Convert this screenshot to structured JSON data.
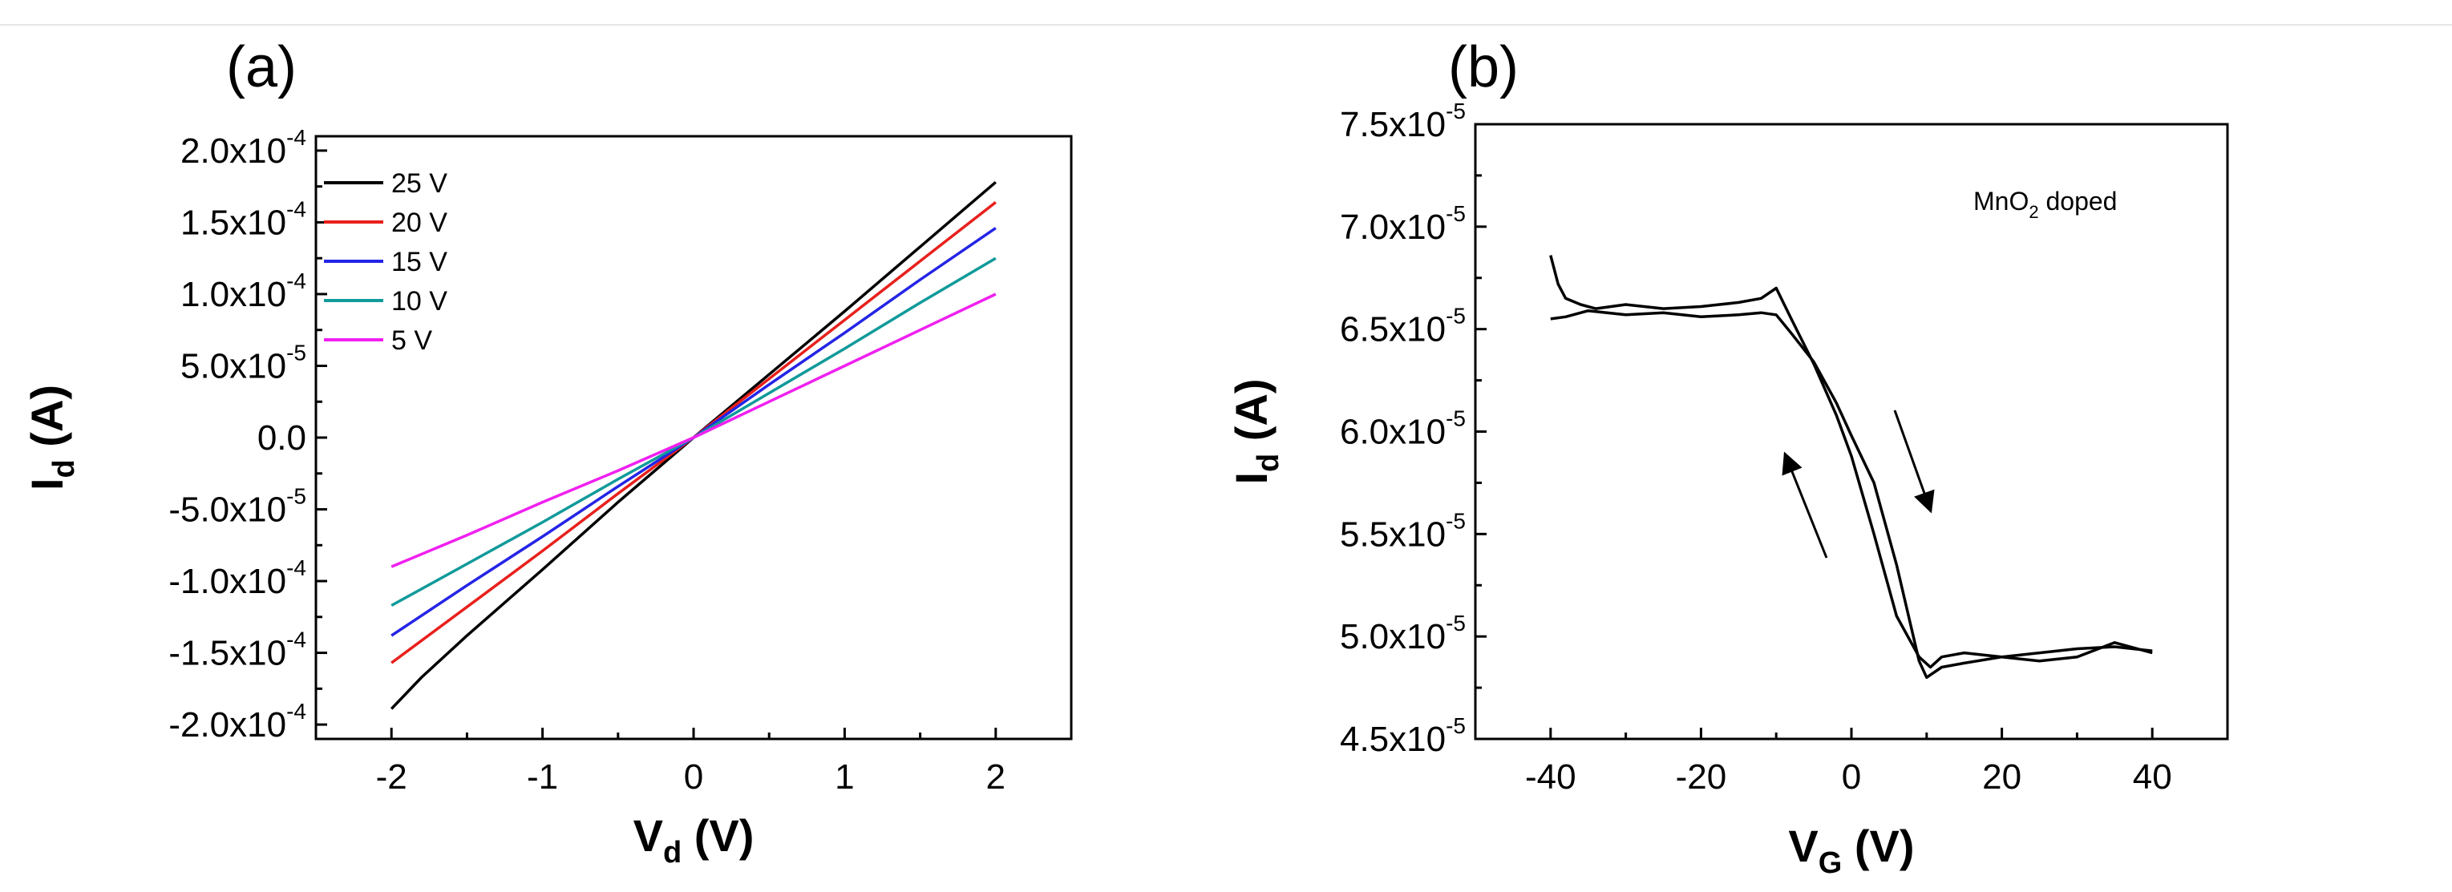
{
  "chart_data": [
    {
      "panel": "(a)",
      "type": "line",
      "xlabel": "V",
      "xlabel_sub": "d",
      "xlabel_unit": " (V)",
      "ylabel": "I",
      "ylabel_sub": "d",
      "ylabel_unit": " (A)",
      "xlim": [
        -2.5,
        2.5
      ],
      "ylim": [
        -0.00021,
        0.00021
      ],
      "xticks": [
        {
          "v": -2,
          "label": "-2"
        },
        {
          "v": -1,
          "label": "-1"
        },
        {
          "v": 0,
          "label": "0"
        },
        {
          "v": 1,
          "label": "1"
        },
        {
          "v": 2,
          "label": "2"
        }
      ],
      "yticks": [
        {
          "v": 0.0002,
          "mant": "2.0x10",
          "exp": "-4"
        },
        {
          "v": 0.00015,
          "mant": "1.5x10",
          "exp": "-4"
        },
        {
          "v": 0.0001,
          "mant": "1.0x10",
          "exp": "-4"
        },
        {
          "v": 5e-05,
          "mant": "5.0x10",
          "exp": "-5"
        },
        {
          "v": 0,
          "mant": "0.0",
          "exp": ""
        },
        {
          "v": -5e-05,
          "mant": "-5.0x10",
          "exp": "-5"
        },
        {
          "v": -0.0001,
          "mant": "-1.0x10",
          "exp": "-4"
        },
        {
          "v": -0.00015,
          "mant": "-1.5x10",
          "exp": "-4"
        },
        {
          "v": -0.0002,
          "mant": "-2.0x10",
          "exp": "-4"
        }
      ],
      "legend_position": "top-left",
      "series": [
        {
          "name": "25 V",
          "color": "#000000",
          "x": [
            -2,
            -1.8,
            -1.5,
            -1,
            -0.5,
            0,
            0.5,
            1,
            1.5,
            2
          ],
          "y": [
            -0.000189,
            -0.000167,
            -0.000138,
            -9.2e-05,
            -4.5e-05,
            0,
            4.4e-05,
            8.8e-05,
            0.000133,
            0.000178
          ]
        },
        {
          "name": "20 V",
          "color": "#e8201c",
          "x": [
            -2,
            -1.5,
            -1,
            -0.5,
            0,
            0.5,
            1,
            1.5,
            2
          ],
          "y": [
            -0.000157,
            -0.000118,
            -7.9e-05,
            -3.9e-05,
            0,
            4.1e-05,
            8.2e-05,
            0.000123,
            0.000164
          ]
        },
        {
          "name": "15 V",
          "color": "#2424e6",
          "x": [
            -2,
            -1.5,
            -1,
            -0.5,
            0,
            0.5,
            1,
            1.5,
            2
          ],
          "y": [
            -0.000138,
            -0.000103,
            -6.9e-05,
            -3.4e-05,
            0,
            3.7e-05,
            7.3e-05,
            0.00011,
            0.000146
          ]
        },
        {
          "name": "10 V",
          "color": "#119a9a",
          "x": [
            -2,
            -1.5,
            -1,
            -0.5,
            0,
            0.5,
            1,
            1.5,
            2
          ],
          "y": [
            -0.000117,
            -8.8e-05,
            -5.9e-05,
            -2.9e-05,
            0,
            3.1e-05,
            6.2e-05,
            9.4e-05,
            0.000125
          ]
        },
        {
          "name": "5 V",
          "color": "#f020f0",
          "x": [
            -2,
            -1.5,
            -1,
            -0.5,
            0,
            0.5,
            1,
            1.5,
            2
          ],
          "y": [
            -9e-05,
            -6.8e-05,
            -4.5e-05,
            -2.3e-05,
            0,
            2.5e-05,
            5e-05,
            7.5e-05,
            0.0001
          ]
        }
      ]
    },
    {
      "panel": "(b)",
      "type": "line",
      "xlabel": "V",
      "xlabel_sub": "G",
      "xlabel_unit": " (V)",
      "ylabel": "I",
      "ylabel_sub": "d",
      "ylabel_unit": " (A)",
      "xlim": [
        -50,
        50
      ],
      "ylim": [
        4.5e-05,
        7.5e-05
      ],
      "xticks": [
        {
          "v": -40,
          "label": "-40"
        },
        {
          "v": -20,
          "label": "-20"
        },
        {
          "v": 0,
          "label": "0"
        },
        {
          "v": 20,
          "label": "20"
        },
        {
          "v": 40,
          "label": "40"
        }
      ],
      "yticks": [
        {
          "v": 7.5e-05,
          "mant": "7.5x10",
          "exp": "-5"
        },
        {
          "v": 7e-05,
          "mant": "7.0x10",
          "exp": "-5"
        },
        {
          "v": 6.5e-05,
          "mant": "6.5x10",
          "exp": "-5"
        },
        {
          "v": 6e-05,
          "mant": "6.0x10",
          "exp": "-5"
        },
        {
          "v": 5.5e-05,
          "mant": "5.5x10",
          "exp": "-5"
        },
        {
          "v": 5e-05,
          "mant": "5.0x10",
          "exp": "-5"
        },
        {
          "v": 4.5e-05,
          "mant": "4.5x10",
          "exp": "-5"
        }
      ],
      "annotation": {
        "main": "MnO",
        "sub": "2",
        "rest": " doped"
      },
      "series": [
        {
          "color": "#000000",
          "x": [
            -40,
            -39,
            -38,
            -36,
            -34,
            -30,
            -25,
            -20,
            -15,
            -12,
            -10,
            -8,
            -5,
            -2,
            0,
            3,
            6,
            9,
            10.5,
            12,
            15,
            20,
            25,
            30,
            35,
            40
          ],
          "y": [
            6.86e-05,
            6.72e-05,
            6.65e-05,
            6.62e-05,
            6.6e-05,
            6.62e-05,
            6.6e-05,
            6.61e-05,
            6.63e-05,
            6.65e-05,
            6.7e-05,
            6.55e-05,
            6.33e-05,
            6.08e-05,
            5.88e-05,
            5.5e-05,
            5.1e-05,
            4.9e-05,
            4.85e-05,
            4.9e-05,
            4.92e-05,
            4.9e-05,
            4.92e-05,
            4.94e-05,
            4.95e-05,
            4.93e-05
          ]
        },
        {
          "color": "#000000",
          "x": [
            40,
            35,
            30,
            25,
            20,
            15,
            12,
            10,
            9,
            6,
            3,
            0,
            -2,
            -5,
            -8,
            -10,
            -12,
            -15,
            -20,
            -25,
            -30,
            -35,
            -38,
            -40
          ],
          "y": [
            4.92e-05,
            4.97e-05,
            4.9e-05,
            4.88e-05,
            4.9e-05,
            4.87e-05,
            4.85e-05,
            4.8e-05,
            4.88e-05,
            5.35e-05,
            5.75e-05,
            5.98e-05,
            6.14e-05,
            6.34e-05,
            6.48e-05,
            6.57e-05,
            6.58e-05,
            6.57e-05,
            6.56e-05,
            6.58e-05,
            6.57e-05,
            6.59e-05,
            6.56e-05,
            6.55e-05
          ]
        }
      ]
    }
  ]
}
